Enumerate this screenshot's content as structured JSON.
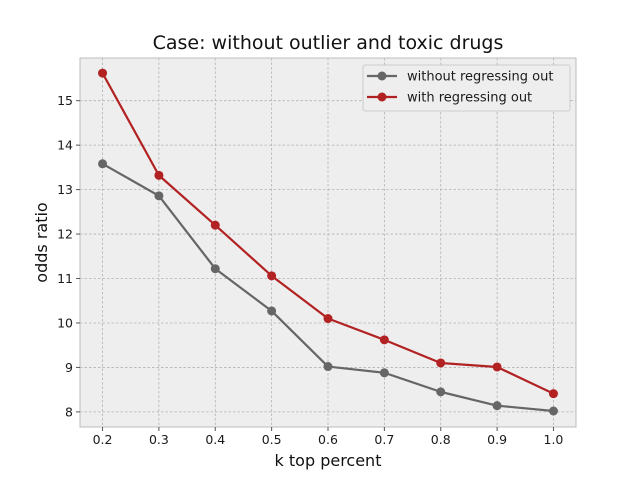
{
  "chart_data": {
    "type": "line",
    "title": "Case: without outlier and toxic drugs",
    "xlabel": "k top percent",
    "ylabel": "odds ratio",
    "x": [
      0.2,
      0.3,
      0.4,
      0.5,
      0.6,
      0.7,
      0.8,
      0.9,
      1.0
    ],
    "x_ticks": [
      "0.2",
      "0.3",
      "0.4",
      "0.5",
      "0.6",
      "0.7",
      "0.8",
      "0.9",
      "1.0"
    ],
    "y_ticks": [
      8,
      9,
      10,
      11,
      12,
      13,
      14,
      15
    ],
    "xlim": [
      0.16,
      1.04
    ],
    "ylim": [
      7.66,
      15.96
    ],
    "grid": true,
    "legend_position": "upper right",
    "series": [
      {
        "name": "without regressing out",
        "color": "#666666",
        "values": [
          13.58,
          12.86,
          11.22,
          10.27,
          9.02,
          8.88,
          8.45,
          8.14,
          8.02
        ]
      },
      {
        "name": "with regressing out",
        "color": "#b22222",
        "values": [
          15.62,
          13.32,
          12.2,
          11.06,
          10.1,
          9.62,
          9.1,
          9.01,
          8.41
        ]
      }
    ]
  }
}
